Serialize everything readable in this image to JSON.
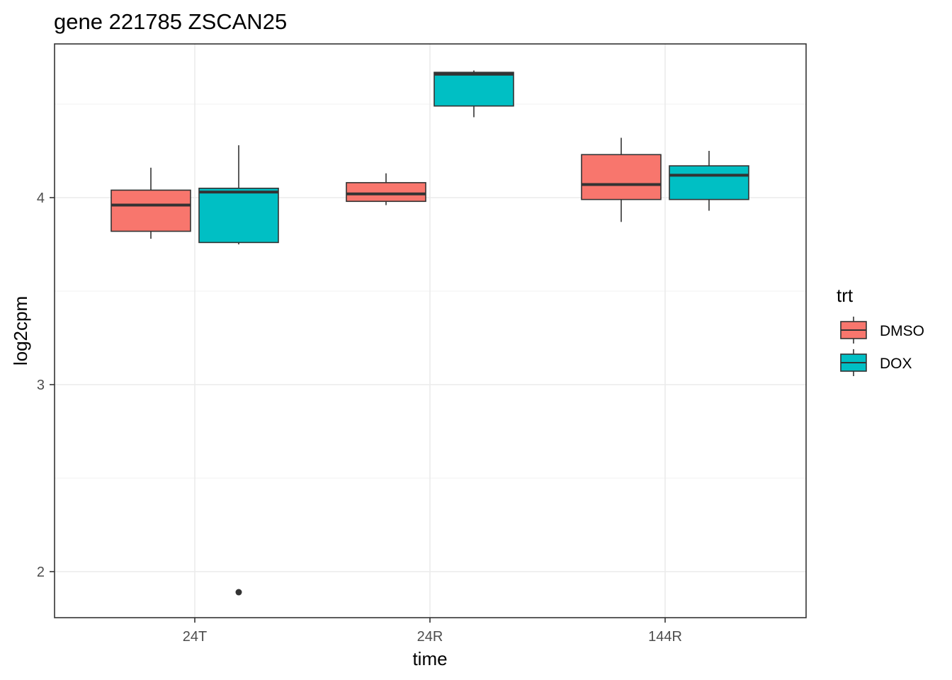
{
  "chart_data": {
    "type": "boxplot",
    "title": "gene 221785 ZSCAN25",
    "xlabel": "time",
    "ylabel": "log2cpm",
    "categories": [
      "24T",
      "24R",
      "144R"
    ],
    "ylim": [
      1.75,
      4.82
    ],
    "yticks": [
      2,
      3,
      4
    ],
    "grid": true,
    "legend": {
      "title": "trt",
      "position": "right",
      "entries": [
        {
          "name": "DMSO",
          "color": "#F8766D"
        },
        {
          "name": "DOX",
          "color": "#00BFC4"
        }
      ]
    },
    "series": [
      {
        "name": "DMSO",
        "color": "#F8766D",
        "boxes": [
          {
            "category": "24T",
            "whisker_low": 3.78,
            "q1": 3.82,
            "median": 3.96,
            "q3": 4.04,
            "whisker_high": 4.16,
            "outliers": []
          },
          {
            "category": "24R",
            "whisker_low": 3.96,
            "q1": 3.98,
            "median": 4.02,
            "q3": 4.08,
            "whisker_high": 4.13,
            "outliers": []
          },
          {
            "category": "144R",
            "whisker_low": 3.87,
            "q1": 3.99,
            "median": 4.07,
            "q3": 4.23,
            "whisker_high": 4.32,
            "outliers": []
          }
        ]
      },
      {
        "name": "DOX",
        "color": "#00BFC4",
        "boxes": [
          {
            "category": "24T",
            "whisker_low": 3.75,
            "q1": 3.76,
            "median": 4.03,
            "q3": 4.05,
            "whisker_high": 4.28,
            "outliers": [
              1.89
            ]
          },
          {
            "category": "24R",
            "whisker_low": 4.43,
            "q1": 4.49,
            "median": 4.66,
            "q3": 4.67,
            "whisker_high": 4.68,
            "outliers": []
          },
          {
            "category": "144R",
            "whisker_low": 3.93,
            "q1": 3.99,
            "median": 4.12,
            "q3": 4.17,
            "whisker_high": 4.25,
            "outliers": []
          }
        ]
      }
    ]
  }
}
